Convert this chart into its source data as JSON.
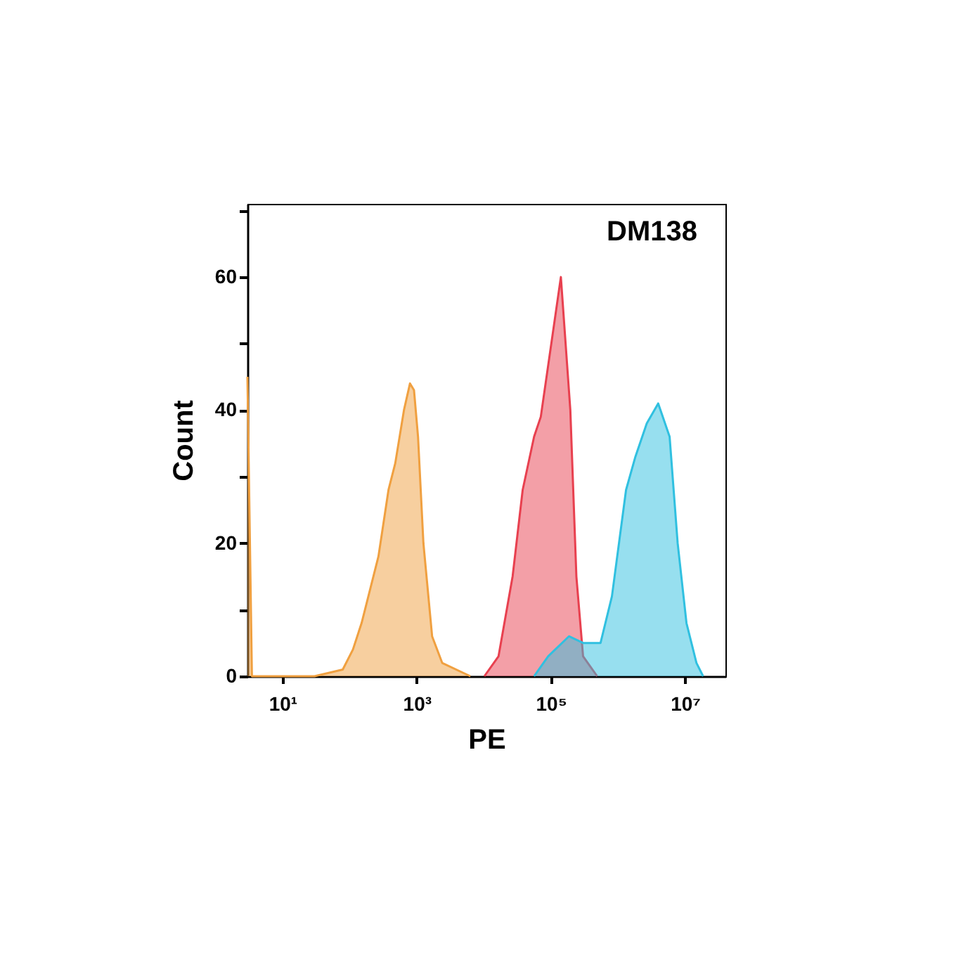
{
  "chart_data": {
    "type": "area",
    "xlabel": "PE",
    "ylabel": "Count",
    "annotations": [
      "DM138"
    ],
    "log": "x",
    "grid": false,
    "xlim": [
      3,
      40000000
    ],
    "ylim": [
      0,
      71
    ],
    "xticks": [
      {
        "value": 10,
        "label": "10¹"
      },
      {
        "value": 1000,
        "label": "10³"
      },
      {
        "value": 100000,
        "label": "10⁵"
      },
      {
        "value": 10000000,
        "label": "10⁷"
      }
    ],
    "yticks": [
      0,
      {
        "value": 10,
        "label": null
      },
      20,
      {
        "value": 30,
        "label": null
      },
      40,
      {
        "value": 50,
        "label": null
      },
      60,
      {
        "value": 70,
        "label": null
      }
    ],
    "series": [
      {
        "color": "#f0a040",
        "x": [
          3,
          3.5,
          30,
          79,
          112,
          151,
          269,
          380,
          479,
          646,
          794,
          912,
          1047,
          1259,
          1698,
          2399,
          6310
        ],
        "values": [
          45,
          0,
          0,
          1,
          4,
          8,
          18,
          28,
          32,
          40,
          44,
          43,
          36,
          20,
          6,
          2,
          0
        ]
      },
      {
        "color": "#e8404f",
        "x": [
          10200,
          16600,
          26900,
          38000,
          56200,
          70800,
          141000,
          195000,
          240000,
          302000,
          490000
        ],
        "values": [
          0,
          3,
          15,
          28,
          36,
          39,
          60,
          40,
          15,
          3,
          0
        ]
      },
      {
        "color": "#30c0e0",
        "x": [
          56200,
          91200,
          186000,
          302000,
          550000,
          813000,
          1320000,
          1820000,
          2690000,
          3980000,
          5890000,
          7760000,
          10500000,
          14800000,
          18600000
        ],
        "values": [
          0,
          3,
          6,
          5,
          5,
          12,
          28,
          33,
          38,
          41,
          36,
          20,
          8,
          2,
          0
        ]
      }
    ]
  }
}
